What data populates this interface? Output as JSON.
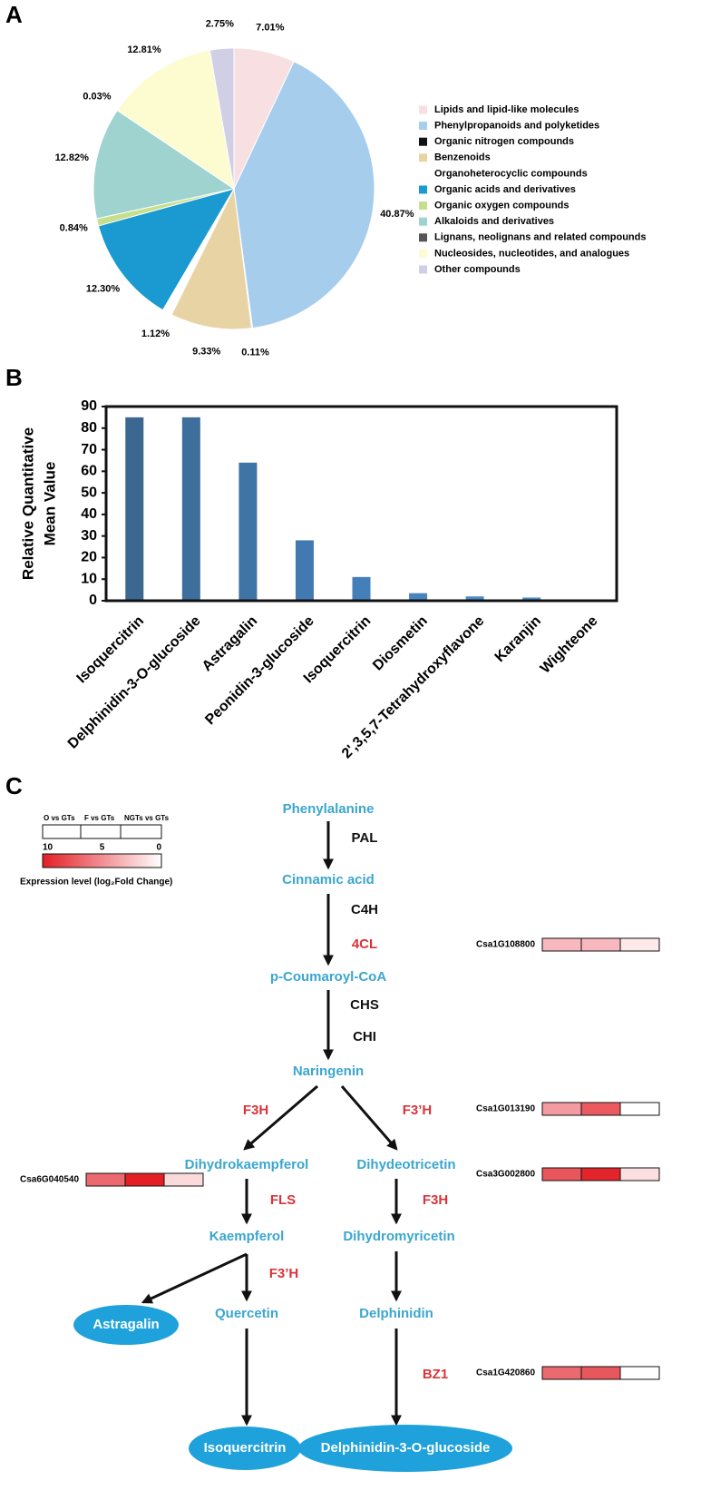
{
  "panel_labels": [
    "A",
    "B",
    "C"
  ],
  "chart_data": [
    {
      "type": "pie",
      "categories": [
        "Lipids and lipid-like molecules",
        "Phenylpropanoids and polyketides",
        "Organic nitrogen compounds",
        "Benzenoids",
        "Organoheterocyclic compounds",
        "Organic acids and derivatives",
        "Organic oxygen compounds",
        "Alkaloids and derivatives",
        "Lignans, neolignans and related compounds",
        "Nucleosides, nucleotides, and analogues",
        "Other compounds"
      ],
      "values": [
        7.01,
        40.87,
        0.11,
        9.33,
        1.12,
        12.3,
        0.84,
        12.82,
        0.03,
        12.81,
        2.75
      ],
      "value_labels": [
        "7.01%",
        "40.87%",
        "0.11%",
        "9.33%",
        "1.12%",
        "12.30%",
        "0.84%",
        "12.82%",
        "0.03%",
        "12.81%",
        "2.75%"
      ],
      "colors": [
        "#f7dfe2",
        "#a6cdec",
        "#111111",
        "#e8d3a5",
        "#ffffff",
        "#1a9ad0",
        "#c5df8c",
        "#9ed3cf",
        "#555555",
        "#fdfbd0",
        "#d1cfe6"
      ]
    },
    {
      "type": "bar",
      "ylabel": [
        "Relative Quantitative",
        "Mean  Value"
      ],
      "categories": [
        "Isoquercitrin",
        "Delphinidin-3-O-glucoside",
        "Astragalin",
        "Peonidin-3-glucoside",
        "Isoquercitrin",
        "Diosmetin",
        "2',3,5,7-Tetrahydroxyflavone",
        "Karanjin",
        "Wighteone"
      ],
      "values": [
        85,
        85,
        64,
        28,
        11,
        3.5,
        2,
        1.5,
        0.5
      ],
      "colors": [
        "#3b6790",
        "#3d6e9c",
        "#3f74a6",
        "#4279b0",
        "#457fb9",
        "#4884c0",
        "#4c89c6",
        "#4f8dca",
        "#5291cd"
      ],
      "ylim": [
        0,
        90
      ],
      "yticks": [
        0,
        10,
        20,
        30,
        40,
        50,
        60,
        70,
        80,
        90
      ]
    }
  ],
  "pathway": {
    "compounds": [
      "Phenylalanine",
      "Cinnamic acid",
      "p-Coumaroyl-CoA",
      "Naringenin",
      "Dihydrokaempferol",
      "Dihydeotricetin",
      "Kaempferol",
      "Dihydromyricetin",
      "Quercetin",
      "Delphinidin"
    ],
    "products": [
      "Astragalin",
      "Isoquercitrin",
      "Delphinidin-3-O-glucoside"
    ],
    "enzymes": [
      "PAL",
      "C4H",
      "4CL",
      "CHS",
      "CHI",
      "F3H",
      "F3’H",
      "FLS",
      "F3H",
      "F3’H",
      "BZ1"
    ],
    "genes": [
      {
        "name": "Csa1G108800",
        "colors": [
          "#f7b8bf",
          "#f7b8bf",
          "#fde9ea"
        ]
      },
      {
        "name": "Csa1G013190",
        "colors": [
          "#f49aa1",
          "#ea5a60",
          "#ffffff"
        ]
      },
      {
        "name": "Csa6G040540",
        "colors": [
          "#ea6a6f",
          "#e31e25",
          "#fbdadc"
        ]
      },
      {
        "name": "Csa3G002800",
        "colors": [
          "#e9565b",
          "#e3252b",
          "#fcdfe1"
        ]
      },
      {
        "name": "Csa1G420860",
        "colors": [
          "#ea6a6f",
          "#e8575c",
          "#ffffff"
        ]
      }
    ],
    "legend": {
      "comparisons": [
        "O vs GTs",
        "F vs GTs",
        "NGTs vs GTs"
      ],
      "scale_ticks": [
        10,
        5,
        0
      ],
      "title": "Expression level (log₂Fold Change)"
    }
  }
}
